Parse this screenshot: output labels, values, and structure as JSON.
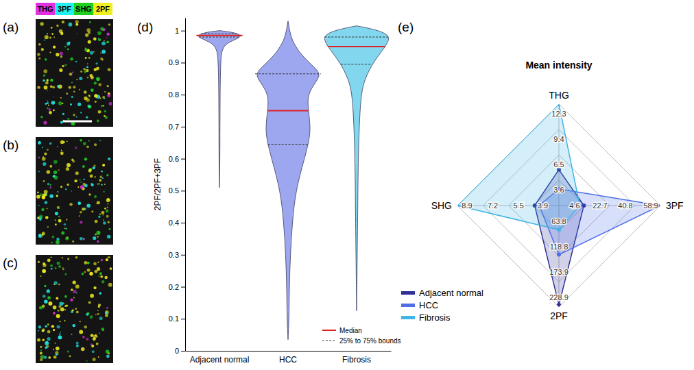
{
  "channels": [
    {
      "name": "THG",
      "color": "#e030e0"
    },
    {
      "name": "3PF",
      "color": "#20f0f0"
    },
    {
      "name": "SHG",
      "color": "#20d020"
    },
    {
      "name": "2PF",
      "color": "#f0f020"
    }
  ],
  "image_panels": [
    "(a)",
    "(b)",
    "(c)"
  ],
  "chart_data": [
    {
      "type": "violin",
      "panel_label": "(d)",
      "y_label": "2PF/2PF+3PF",
      "categories": [
        "Adjacent normal",
        "HCC",
        "Fibrosis"
      ],
      "colors": [
        "#9da7ef",
        "#9da7ef",
        "#82d6ee"
      ],
      "ylim": [
        0,
        1.04
      ],
      "yticks": [
        0,
        0.1,
        0.2,
        0.3,
        0.4,
        0.5,
        0.6,
        0.7,
        0.8,
        0.9,
        1
      ],
      "distributions": [
        {
          "y": [
            0.51,
            0.6,
            0.7,
            0.8,
            0.9,
            0.94,
            0.96,
            0.975,
            0.985,
            0.995,
            1.0
          ],
          "density": [
            0,
            0.015,
            0.015,
            0.02,
            0.035,
            0.07,
            0.2,
            0.55,
            0.7,
            0.42,
            0
          ]
        },
        {
          "y": [
            0.035,
            0.1,
            0.2,
            0.3,
            0.4,
            0.5,
            0.6,
            0.66,
            0.7,
            0.75,
            0.8,
            0.84,
            0.865,
            0.89,
            0.93,
            0.97,
            1.0,
            1.03
          ],
          "density": [
            0,
            0.03,
            0.04,
            0.07,
            0.13,
            0.23,
            0.5,
            0.65,
            0.68,
            0.62,
            0.58,
            0.85,
            1,
            0.75,
            0.35,
            0.12,
            0.05,
            0
          ]
        },
        {
          "y": [
            0.125,
            0.3,
            0.5,
            0.6,
            0.7,
            0.8,
            0.85,
            0.9,
            0.94,
            0.97,
            0.99,
            1.005,
            1.015
          ],
          "density": [
            0,
            0.02,
            0.04,
            0.05,
            0.08,
            0.13,
            0.25,
            0.5,
            0.8,
            1,
            0.95,
            0.5,
            0
          ]
        }
      ],
      "medians": [
        0.985,
        0.75,
        0.95
      ],
      "q1": [
        0.98,
        0.645,
        0.895
      ],
      "q3": [
        0.99,
        0.865,
        0.98
      ],
      "median_label": "Median",
      "quartile_label": "25% to 75% bounds",
      "legend": "lower right"
    },
    {
      "type": "radar",
      "panel_label": "(e)",
      "title": "Mean intensity",
      "categories": [
        "THG",
        "3PF",
        "2PF",
        "SHG"
      ],
      "axis_ranges": [
        [
          0.7,
          12.3
        ],
        [
          -13.5,
          58.9
        ],
        [
          8.8,
          228.9
        ],
        [
          2.2,
          8.9
        ]
      ],
      "axis_ticks": [
        [
          3.6,
          6.5,
          9.4,
          12.3
        ],
        [
          4.6,
          22.7,
          40.8,
          58.9
        ],
        [
          63.8,
          118.8,
          173.9,
          228.9
        ],
        [
          3.9,
          5.5,
          7.2,
          8.9
        ]
      ],
      "series": [
        {
          "name": "Adjacent normal",
          "color": "#2e2e96",
          "values": [
            4.8,
            4.3,
            224.6,
            3.8
          ]
        },
        {
          "name": "HCC",
          "color": "#4f6fe6",
          "values": [
            2.6,
            58.9,
            115.3,
            3.5
          ]
        },
        {
          "name": "Fibrosis",
          "color": "#3fb4e6",
          "values": [
            12.3,
            1.4,
            61.3,
            8.9
          ]
        }
      ],
      "legend": "lower left"
    }
  ]
}
